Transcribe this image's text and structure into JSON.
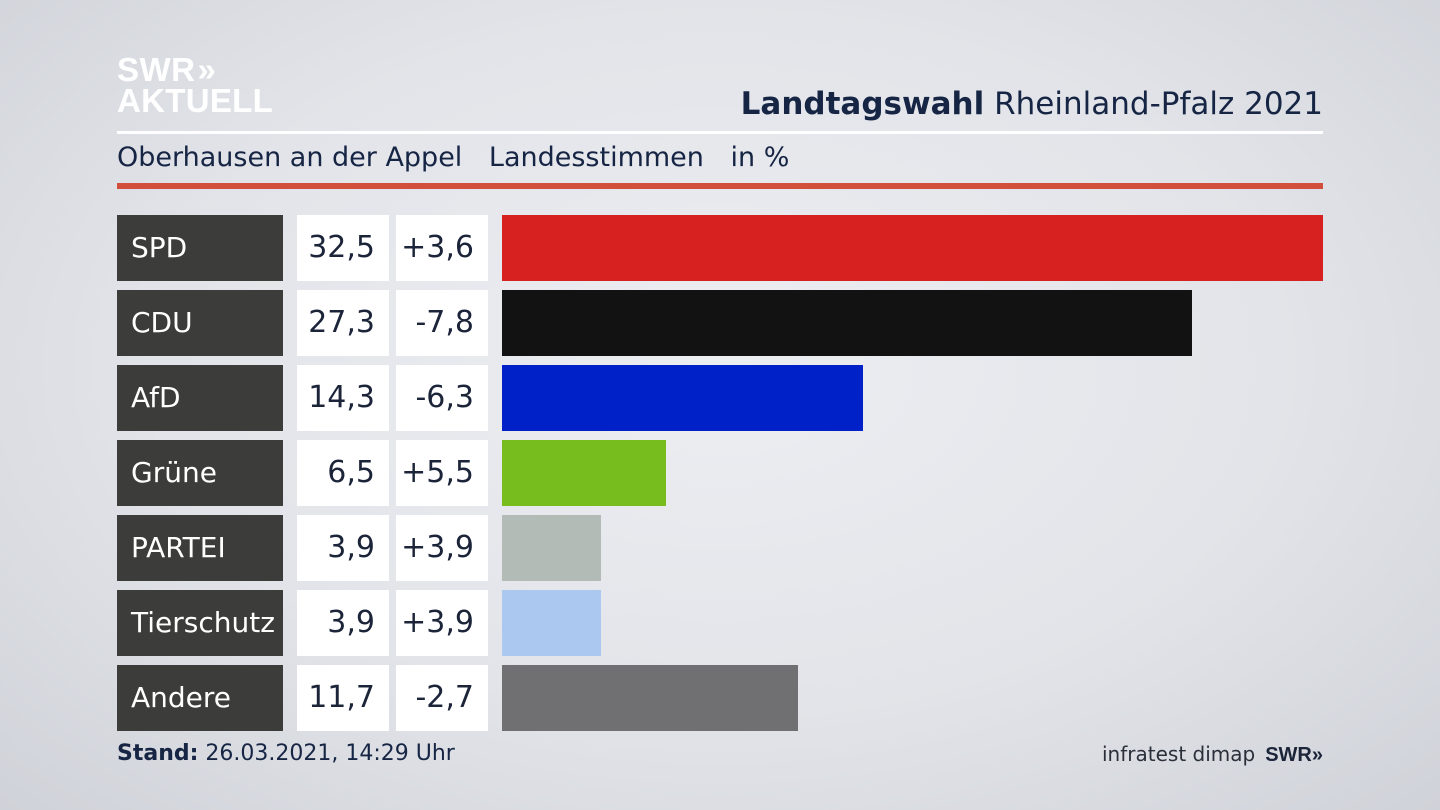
{
  "brand": {
    "line1": "SWR",
    "chevrons": "»",
    "line2": "AKTUELL"
  },
  "header": {
    "title_bold": "Landtagswahl",
    "title_rest": "Rheinland-Pfalz 2021"
  },
  "subtitle": {
    "location": "Oberhausen an der Appel",
    "type": "Landesstimmen",
    "unit": "in %"
  },
  "footer": {
    "stand_label": "Stand:",
    "stand_value": "26.03.2021, 14:29 Uhr",
    "source": "infratest dimap",
    "source_brand": "SWR",
    "source_chevrons": "»"
  },
  "colors": {
    "accent_rule": "#d24f3c"
  },
  "chart_data": {
    "type": "bar",
    "orientation": "horizontal",
    "categories": [
      "SPD",
      "CDU",
      "AfD",
      "Grüne",
      "PARTEI",
      "Tierschutz",
      "Andere"
    ],
    "values": [
      32.5,
      27.3,
      14.3,
      6.5,
      3.9,
      3.9,
      11.7
    ],
    "value_labels": [
      "32,5",
      "27,3",
      "14,3",
      "6,5",
      "3,9",
      "3,9",
      "11,7"
    ],
    "diff_labels": [
      "+3,6",
      "-7,8",
      "-6,3",
      "+5,5",
      "+3,9",
      "+3,9",
      "-2,7"
    ],
    "diffs": [
      3.6,
      -7.8,
      -6.3,
      5.5,
      3.9,
      3.9,
      -2.7
    ],
    "colors": [
      "#d72020",
      "#121212",
      "#0021c8",
      "#78bd1e",
      "#b3bbb6",
      "#abc8f0",
      "#707072"
    ],
    "xlim": [
      0,
      32.5
    ]
  }
}
